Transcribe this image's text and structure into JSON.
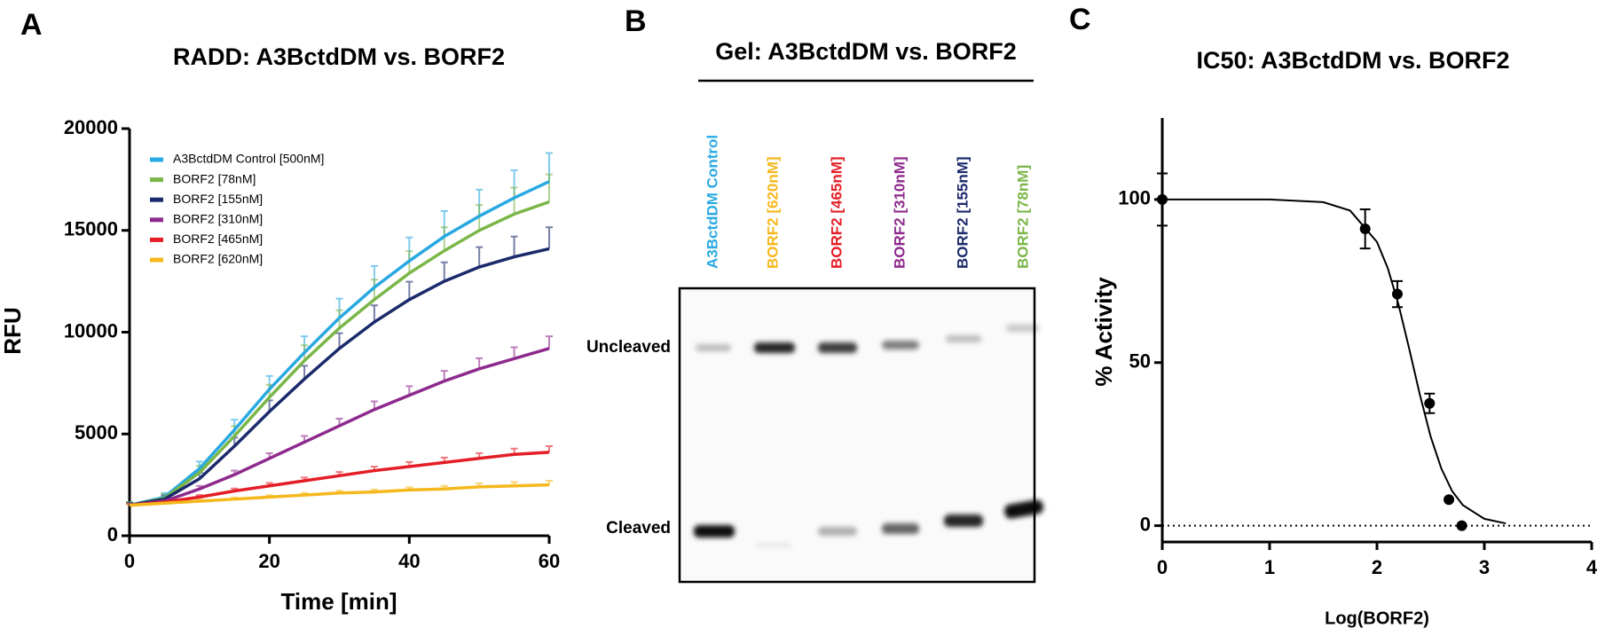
{
  "panels": [
    "A",
    "B",
    "C"
  ],
  "chart_data": [
    {
      "type": "line",
      "title": "RADD: A3BctdDM vs. BORF2",
      "x_label": "Time [min]",
      "y_label": "RFU",
      "x": [
        0,
        5,
        10,
        15,
        20,
        25,
        30,
        35,
        40,
        45,
        50,
        55,
        60
      ],
      "xlim": [
        0,
        60
      ],
      "xticks": [
        0,
        20,
        40,
        60
      ],
      "ylim": [
        0,
        20000
      ],
      "yticks": [
        0,
        5000,
        10000,
        15000,
        20000
      ],
      "series": [
        {
          "name": "A3BctdDM Control [500nM]",
          "color": "#29a9e1",
          "values": [
            1500,
            1900,
            3300,
            5200,
            7200,
            9000,
            10700,
            12200,
            13500,
            14700,
            15700,
            16600,
            17400
          ],
          "errors": [
            150,
            200,
            350,
            500,
            650,
            800,
            950,
            1050,
            1150,
            1250,
            1300,
            1350,
            1400
          ]
        },
        {
          "name": "BORF2 [78nM]",
          "color": "#7ab648",
          "values": [
            1500,
            1850,
            3100,
            4900,
            6800,
            8600,
            10200,
            11600,
            12900,
            14000,
            15000,
            15800,
            16400
          ],
          "errors": [
            150,
            200,
            330,
            480,
            620,
            760,
            880,
            980,
            1080,
            1150,
            1250,
            1300,
            1350
          ]
        },
        {
          "name": "BORF2 [155nM]",
          "color": "#1b2a6b",
          "values": [
            1500,
            1800,
            2800,
            4400,
            6100,
            7700,
            9200,
            10500,
            11600,
            12500,
            13200,
            13700,
            14100
          ],
          "errors": [
            120,
            180,
            300,
            420,
            550,
            650,
            750,
            820,
            880,
            930,
            980,
            1000,
            1050
          ]
        },
        {
          "name": "BORF2 [310nM]",
          "color": "#8e2a8e",
          "values": [
            1500,
            1700,
            2300,
            3000,
            3800,
            4600,
            5400,
            6200,
            6900,
            7600,
            8200,
            8700,
            9200
          ],
          "errors": [
            80,
            100,
            150,
            200,
            250,
            300,
            350,
            400,
            450,
            500,
            520,
            560,
            600
          ]
        },
        {
          "name": "BORF2 [465nM]",
          "color": "#e41e26",
          "values": [
            1500,
            1650,
            1900,
            2200,
            2450,
            2700,
            2950,
            3200,
            3400,
            3600,
            3800,
            4000,
            4100
          ],
          "errors": [
            60,
            80,
            100,
            120,
            140,
            160,
            180,
            200,
            220,
            240,
            260,
            280,
            300
          ]
        },
        {
          "name": "BORF2 [620nM]",
          "color": "#f5b81c",
          "values": [
            1500,
            1600,
            1700,
            1800,
            1900,
            2000,
            2100,
            2150,
            2250,
            2300,
            2400,
            2450,
            2500
          ],
          "errors": [
            50,
            60,
            70,
            80,
            90,
            100,
            110,
            120,
            130,
            150,
            170,
            190,
            200
          ]
        }
      ]
    },
    {
      "type": "scatter",
      "title": "IC50: A3BctdDM vs. BORF2",
      "x_label": "Log(BORF2)",
      "y_label": "% Activity",
      "xlim": [
        0,
        4
      ],
      "xticks": [
        0,
        1,
        2,
        3,
        4
      ],
      "ylim": [
        -5,
        125
      ],
      "yticks": [
        0,
        50,
        100
      ],
      "color": "#000000",
      "x": [
        0,
        1.89,
        2.19,
        2.49,
        2.67,
        2.79
      ],
      "values": [
        100,
        91,
        71,
        37.5,
        8,
        0
      ],
      "errors": [
        8,
        6,
        4,
        3,
        null,
        null
      ],
      "fit": {
        "x": [
          0,
          0.5,
          1.0,
          1.5,
          1.75,
          2.0,
          2.1,
          2.2,
          2.3,
          2.4,
          2.5,
          2.6,
          2.7,
          2.8,
          3.0,
          3.2
        ],
        "values": [
          100,
          100,
          100,
          99.2,
          96.6,
          87.0,
          79.0,
          67.9,
          54.3,
          40.1,
          27.3,
          17.5,
          10.6,
          6.3,
          2.1,
          0.7
        ]
      }
    }
  ],
  "gel": {
    "title": "Gel: A3BctdDM vs. BORF2",
    "lanes": [
      {
        "label": "A3BctdDM Control",
        "color": "#29a9e1"
      },
      {
        "label": "BORF2 [620nM]",
        "color": "#f5b81c"
      },
      {
        "label": "BORF2 [465nM]",
        "color": "#e41e26"
      },
      {
        "label": "BORF2 [310nM]",
        "color": "#8e2a8e"
      },
      {
        "label": "BORF2 [155nM]",
        "color": "#1b2a6b"
      },
      {
        "label": "BORF2 [78nM]",
        "color": "#7ab648"
      }
    ],
    "rows": [
      "Uncleaved",
      "Cleaved"
    ]
  }
}
